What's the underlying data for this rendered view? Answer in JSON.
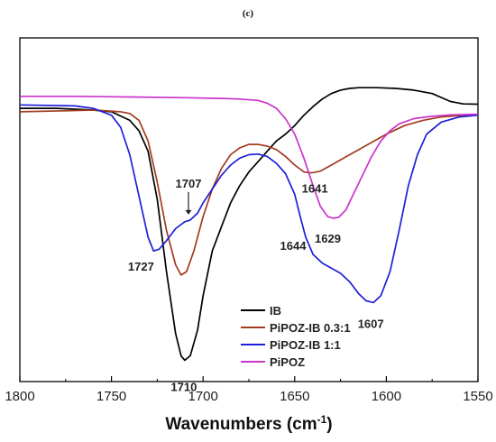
{
  "chart_data": {
    "type": "line",
    "panel_label": "(c)",
    "xlabel": "Wavenumbers (cm",
    "xlabel_sup": "-1",
    "xlabel_tail": ")",
    "ylabel": "",
    "xlim": [
      1800,
      1550
    ],
    "x_reversed": true,
    "ylim": [
      0,
      1
    ],
    "ytick_labels": false,
    "xticks": [
      1800,
      1750,
      1700,
      1650,
      1600,
      1550
    ],
    "xtick_labels": [
      "1800",
      "1750",
      "1700",
      "1650",
      "1600",
      "1550"
    ],
    "grid": false,
    "legend_position": "lower-right",
    "series": [
      {
        "name": "IB",
        "color": "#000000",
        "points": [
          [
            1800,
            0.795
          ],
          [
            1780,
            0.795
          ],
          [
            1760,
            0.79
          ],
          [
            1750,
            0.785
          ],
          [
            1740,
            0.76
          ],
          [
            1735,
            0.73
          ],
          [
            1730,
            0.67
          ],
          [
            1725,
            0.53
          ],
          [
            1720,
            0.32
          ],
          [
            1715,
            0.14
          ],
          [
            1712,
            0.075
          ],
          [
            1710,
            0.062
          ],
          [
            1707,
            0.075
          ],
          [
            1703,
            0.15
          ],
          [
            1700,
            0.25
          ],
          [
            1695,
            0.38
          ],
          [
            1690,
            0.45
          ],
          [
            1685,
            0.52
          ],
          [
            1680,
            0.57
          ],
          [
            1675,
            0.61
          ],
          [
            1670,
            0.64
          ],
          [
            1665,
            0.67
          ],
          [
            1660,
            0.7
          ],
          [
            1655,
            0.72
          ],
          [
            1650,
            0.745
          ],
          [
            1645,
            0.775
          ],
          [
            1640,
            0.8
          ],
          [
            1635,
            0.822
          ],
          [
            1630,
            0.838
          ],
          [
            1625,
            0.848
          ],
          [
            1620,
            0.853
          ],
          [
            1615,
            0.855
          ],
          [
            1605,
            0.855
          ],
          [
            1595,
            0.853
          ],
          [
            1585,
            0.848
          ],
          [
            1575,
            0.838
          ],
          [
            1565,
            0.815
          ],
          [
            1558,
            0.808
          ],
          [
            1550,
            0.807
          ]
        ]
      },
      {
        "name": "PiPOZ-IB 0.3:1",
        "color": "#a33b1e",
        "points": [
          [
            1800,
            0.785
          ],
          [
            1775,
            0.788
          ],
          [
            1760,
            0.79
          ],
          [
            1745,
            0.785
          ],
          [
            1740,
            0.78
          ],
          [
            1735,
            0.76
          ],
          [
            1730,
            0.7
          ],
          [
            1725,
            0.58
          ],
          [
            1720,
            0.44
          ],
          [
            1715,
            0.34
          ],
          [
            1712,
            0.31
          ],
          [
            1709,
            0.32
          ],
          [
            1705,
            0.38
          ],
          [
            1700,
            0.48
          ],
          [
            1695,
            0.56
          ],
          [
            1690,
            0.62
          ],
          [
            1685,
            0.66
          ],
          [
            1680,
            0.68
          ],
          [
            1675,
            0.69
          ],
          [
            1670,
            0.69
          ],
          [
            1665,
            0.685
          ],
          [
            1660,
            0.675
          ],
          [
            1655,
            0.655
          ],
          [
            1650,
            0.63
          ],
          [
            1645,
            0.61
          ],
          [
            1641,
            0.607
          ],
          [
            1636,
            0.612
          ],
          [
            1630,
            0.63
          ],
          [
            1620,
            0.66
          ],
          [
            1610,
            0.69
          ],
          [
            1600,
            0.72
          ],
          [
            1590,
            0.745
          ],
          [
            1580,
            0.76
          ],
          [
            1570,
            0.77
          ],
          [
            1560,
            0.774
          ],
          [
            1550,
            0.776
          ]
        ]
      },
      {
        "name": "PiPOZ-IB 1:1",
        "color": "#1f1fd8",
        "points": [
          [
            1800,
            0.805
          ],
          [
            1770,
            0.802
          ],
          [
            1760,
            0.795
          ],
          [
            1750,
            0.775
          ],
          [
            1745,
            0.74
          ],
          [
            1740,
            0.66
          ],
          [
            1735,
            0.54
          ],
          [
            1730,
            0.42
          ],
          [
            1727,
            0.38
          ],
          [
            1724,
            0.385
          ],
          [
            1720,
            0.41
          ],
          [
            1715,
            0.445
          ],
          [
            1710,
            0.465
          ],
          [
            1707,
            0.47
          ],
          [
            1703,
            0.49
          ],
          [
            1700,
            0.52
          ],
          [
            1695,
            0.56
          ],
          [
            1690,
            0.6
          ],
          [
            1685,
            0.63
          ],
          [
            1680,
            0.65
          ],
          [
            1675,
            0.66
          ],
          [
            1670,
            0.662
          ],
          [
            1665,
            0.655
          ],
          [
            1660,
            0.635
          ],
          [
            1655,
            0.605
          ],
          [
            1650,
            0.545
          ],
          [
            1647,
            0.48
          ],
          [
            1644,
            0.42
          ],
          [
            1640,
            0.37
          ],
          [
            1635,
            0.345
          ],
          [
            1630,
            0.33
          ],
          [
            1625,
            0.315
          ],
          [
            1620,
            0.29
          ],
          [
            1615,
            0.255
          ],
          [
            1611,
            0.235
          ],
          [
            1607,
            0.23
          ],
          [
            1603,
            0.25
          ],
          [
            1598,
            0.32
          ],
          [
            1593,
            0.44
          ],
          [
            1588,
            0.57
          ],
          [
            1583,
            0.66
          ],
          [
            1578,
            0.72
          ],
          [
            1570,
            0.755
          ],
          [
            1560,
            0.77
          ],
          [
            1550,
            0.775
          ]
        ]
      },
      {
        "name": "PiPOZ",
        "color": "#cc33cc",
        "points": [
          [
            1800,
            0.83
          ],
          [
            1770,
            0.83
          ],
          [
            1740,
            0.828
          ],
          [
            1710,
            0.826
          ],
          [
            1690,
            0.824
          ],
          [
            1680,
            0.822
          ],
          [
            1670,
            0.818
          ],
          [
            1665,
            0.81
          ],
          [
            1660,
            0.795
          ],
          [
            1655,
            0.765
          ],
          [
            1650,
            0.72
          ],
          [
            1645,
            0.65
          ],
          [
            1640,
            0.57
          ],
          [
            1636,
            0.51
          ],
          [
            1632,
            0.48
          ],
          [
            1629,
            0.475
          ],
          [
            1626,
            0.478
          ],
          [
            1622,
            0.5
          ],
          [
            1618,
            0.545
          ],
          [
            1613,
            0.6
          ],
          [
            1608,
            0.655
          ],
          [
            1603,
            0.7
          ],
          [
            1598,
            0.73
          ],
          [
            1593,
            0.75
          ],
          [
            1585,
            0.765
          ],
          [
            1575,
            0.772
          ],
          [
            1565,
            0.776
          ],
          [
            1550,
            0.778
          ]
        ]
      }
    ],
    "annotations": [
      {
        "text": "1707",
        "x": 1707,
        "y": 0.47,
        "arrow": true
      },
      {
        "text": "1727",
        "x": 1727,
        "y": 0.38
      },
      {
        "text": "1710",
        "x": 1710,
        "y": 0.062
      },
      {
        "text": "1641",
        "x": 1641,
        "y": 0.607
      },
      {
        "text": "1629",
        "x": 1629,
        "y": 0.475
      },
      {
        "text": "1644",
        "x": 1644,
        "y": 0.42
      },
      {
        "text": "1607",
        "x": 1607,
        "y": 0.23
      }
    ]
  }
}
